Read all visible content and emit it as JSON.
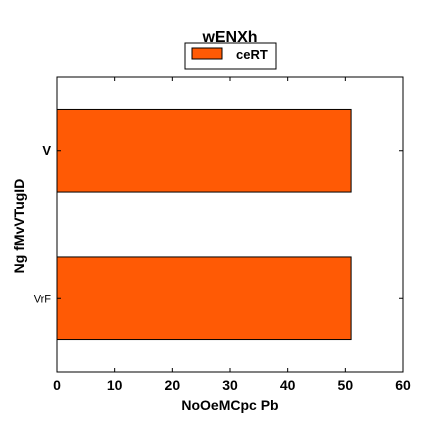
{
  "chart_data": {
    "type": "bar",
    "orientation": "horizontal",
    "title": "wENXh",
    "xlabel": "NoOeMCpc Pb",
    "ylabel": "Ng fMvVTugID",
    "categories": [
      "V",
      "VrF"
    ],
    "series": [
      {
        "name": "ceRT",
        "values": [
          51,
          51
        ],
        "color": "#ff5a05"
      }
    ],
    "xlim": [
      0,
      60
    ],
    "xticks": [
      0,
      10,
      20,
      30,
      40,
      50,
      60
    ],
    "grid": false,
    "legend_position": "top-center"
  }
}
